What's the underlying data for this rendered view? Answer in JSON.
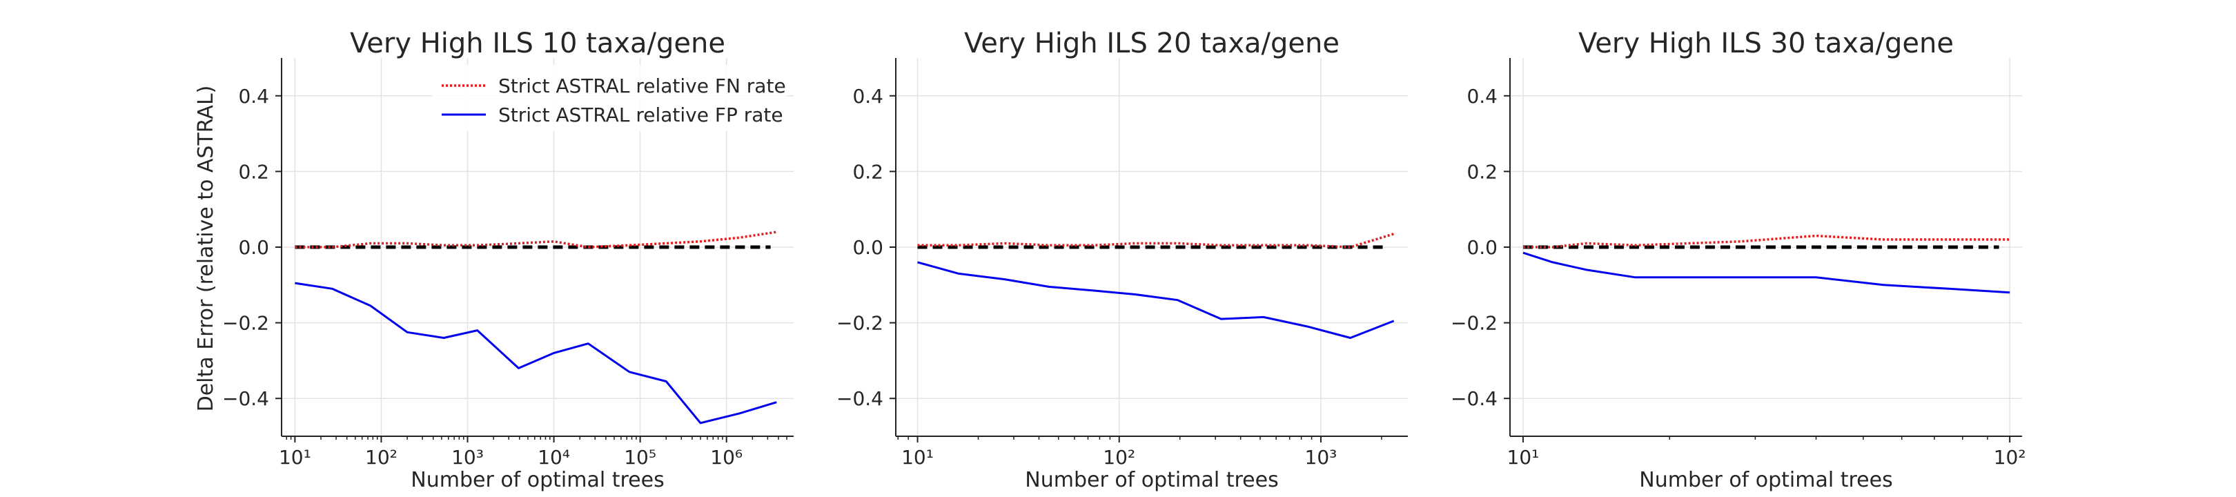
{
  "figure": {
    "ylabel": "Delta Error (relative to ASTRAL)"
  },
  "chart_data": [
    {
      "type": "line",
      "title": "Very High ILS 10 taxa/gene",
      "xlabel": "Number of optimal trees",
      "ylabel": "Delta Error (relative to ASTRAL)",
      "xscale": "log",
      "xlim": [
        7,
        6000000
      ],
      "ylim": [
        -0.5,
        0.5
      ],
      "xtick_labels": [
        "10¹",
        "10²",
        "10³",
        "10⁴",
        "10⁵",
        "10⁶"
      ],
      "xticks": [
        10,
        100,
        1000,
        10000,
        100000,
        1000000
      ],
      "ytick_labels": [
        "−0.4",
        "−0.2",
        "0.0",
        "0.2",
        "0.4"
      ],
      "yticks": [
        -0.4,
        -0.2,
        0.0,
        0.2,
        0.4
      ],
      "grid": true,
      "legend": {
        "placement": "top-right",
        "show": true
      },
      "series": [
        {
          "name": "Strict ASTRAL relative FN rate",
          "style": "dotted",
          "color": "#e41a1c",
          "x": [
            10,
            27,
            75,
            200,
            530,
            1300,
            3900,
            10000,
            25000,
            75000,
            200000,
            500000,
            1400000,
            3800000
          ],
          "y": [
            0.0,
            0.0,
            0.01,
            0.01,
            0.005,
            0.005,
            0.01,
            0.015,
            0.0,
            0.005,
            0.01,
            0.015,
            0.025,
            0.04
          ]
        },
        {
          "name": "Strict ASTRAL relative FP rate",
          "style": "solid",
          "color": "#0000ee",
          "x": [
            10,
            27,
            75,
            200,
            530,
            1300,
            3900,
            10000,
            25000,
            75000,
            200000,
            500000,
            1400000,
            3800000
          ],
          "y": [
            -0.095,
            -0.11,
            -0.155,
            -0.225,
            -0.24,
            -0.22,
            -0.32,
            -0.28,
            -0.255,
            -0.33,
            -0.355,
            -0.465,
            -0.44,
            -0.41
          ]
        }
      ],
      "baseline": {
        "y": 0.0,
        "color": "#000000",
        "style": "dashed"
      }
    },
    {
      "type": "line",
      "title": "Very High ILS 20 taxa/gene",
      "xlabel": "Number of optimal trees",
      "xscale": "log",
      "xlim": [
        7.8,
        2700
      ],
      "ylim": [
        -0.5,
        0.5
      ],
      "xtick_labels": [
        "10¹",
        "10²",
        "10³"
      ],
      "xticks": [
        10,
        100,
        1000
      ],
      "ytick_labels": [
        "−0.4",
        "−0.2",
        "0.0",
        "0.2",
        "0.4"
      ],
      "yticks": [
        -0.4,
        -0.2,
        0.0,
        0.2,
        0.4
      ],
      "grid": true,
      "legend": {
        "show": false
      },
      "series": [
        {
          "name": "Strict ASTRAL relative FN rate",
          "style": "dotted",
          "color": "#e41a1c",
          "x": [
            10,
            16,
            27,
            45,
            75,
            120,
            195,
            320,
            520,
            860,
            1400,
            2300
          ],
          "y": [
            0.005,
            0.005,
            0.01,
            0.005,
            0.005,
            0.01,
            0.01,
            0.005,
            0.005,
            0.005,
            0.0,
            0.035
          ]
        },
        {
          "name": "Strict ASTRAL relative FP rate",
          "style": "solid",
          "color": "#0000ee",
          "x": [
            10,
            16,
            27,
            45,
            75,
            120,
            195,
            320,
            520,
            860,
            1400,
            2300
          ],
          "y": [
            -0.04,
            -0.07,
            -0.085,
            -0.105,
            -0.115,
            -0.125,
            -0.14,
            -0.19,
            -0.185,
            -0.21,
            -0.24,
            -0.195
          ]
        }
      ],
      "baseline": {
        "y": 0.0,
        "color": "#000000",
        "style": "dashed"
      }
    },
    {
      "type": "line",
      "title": "Very High ILS 30 taxa/gene",
      "xlabel": "Number of optimal trees",
      "xscale": "log",
      "xlim": [
        9.4,
        106
      ],
      "ylim": [
        -0.5,
        0.5
      ],
      "xtick_labels": [
        "10¹",
        "10²"
      ],
      "xticks": [
        10,
        100
      ],
      "ytick_labels": [
        "−0.4",
        "−0.2",
        "0.0",
        "0.2",
        "0.4"
      ],
      "yticks": [
        -0.4,
        -0.2,
        0.0,
        0.2,
        0.4
      ],
      "grid": true,
      "legend": {
        "show": false
      },
      "series": [
        {
          "name": "Strict ASTRAL relative FN rate",
          "style": "dotted",
          "color": "#e41a1c",
          "x": [
            10,
            11.5,
            13.5,
            17,
            28,
            40,
            55,
            75,
            100
          ],
          "y": [
            0.0,
            0.0,
            0.01,
            0.005,
            0.015,
            0.03,
            0.02,
            0.02,
            0.02
          ]
        },
        {
          "name": "Strict ASTRAL relative FP rate",
          "style": "solid",
          "color": "#0000ee",
          "x": [
            10,
            11.5,
            13.5,
            17,
            28,
            40,
            55,
            75,
            100
          ],
          "y": [
            -0.015,
            -0.04,
            -0.06,
            -0.08,
            -0.08,
            -0.08,
            -0.1,
            -0.11,
            -0.12
          ]
        }
      ],
      "baseline": {
        "y": 0.0,
        "color": "#000000",
        "style": "dashed"
      }
    }
  ]
}
